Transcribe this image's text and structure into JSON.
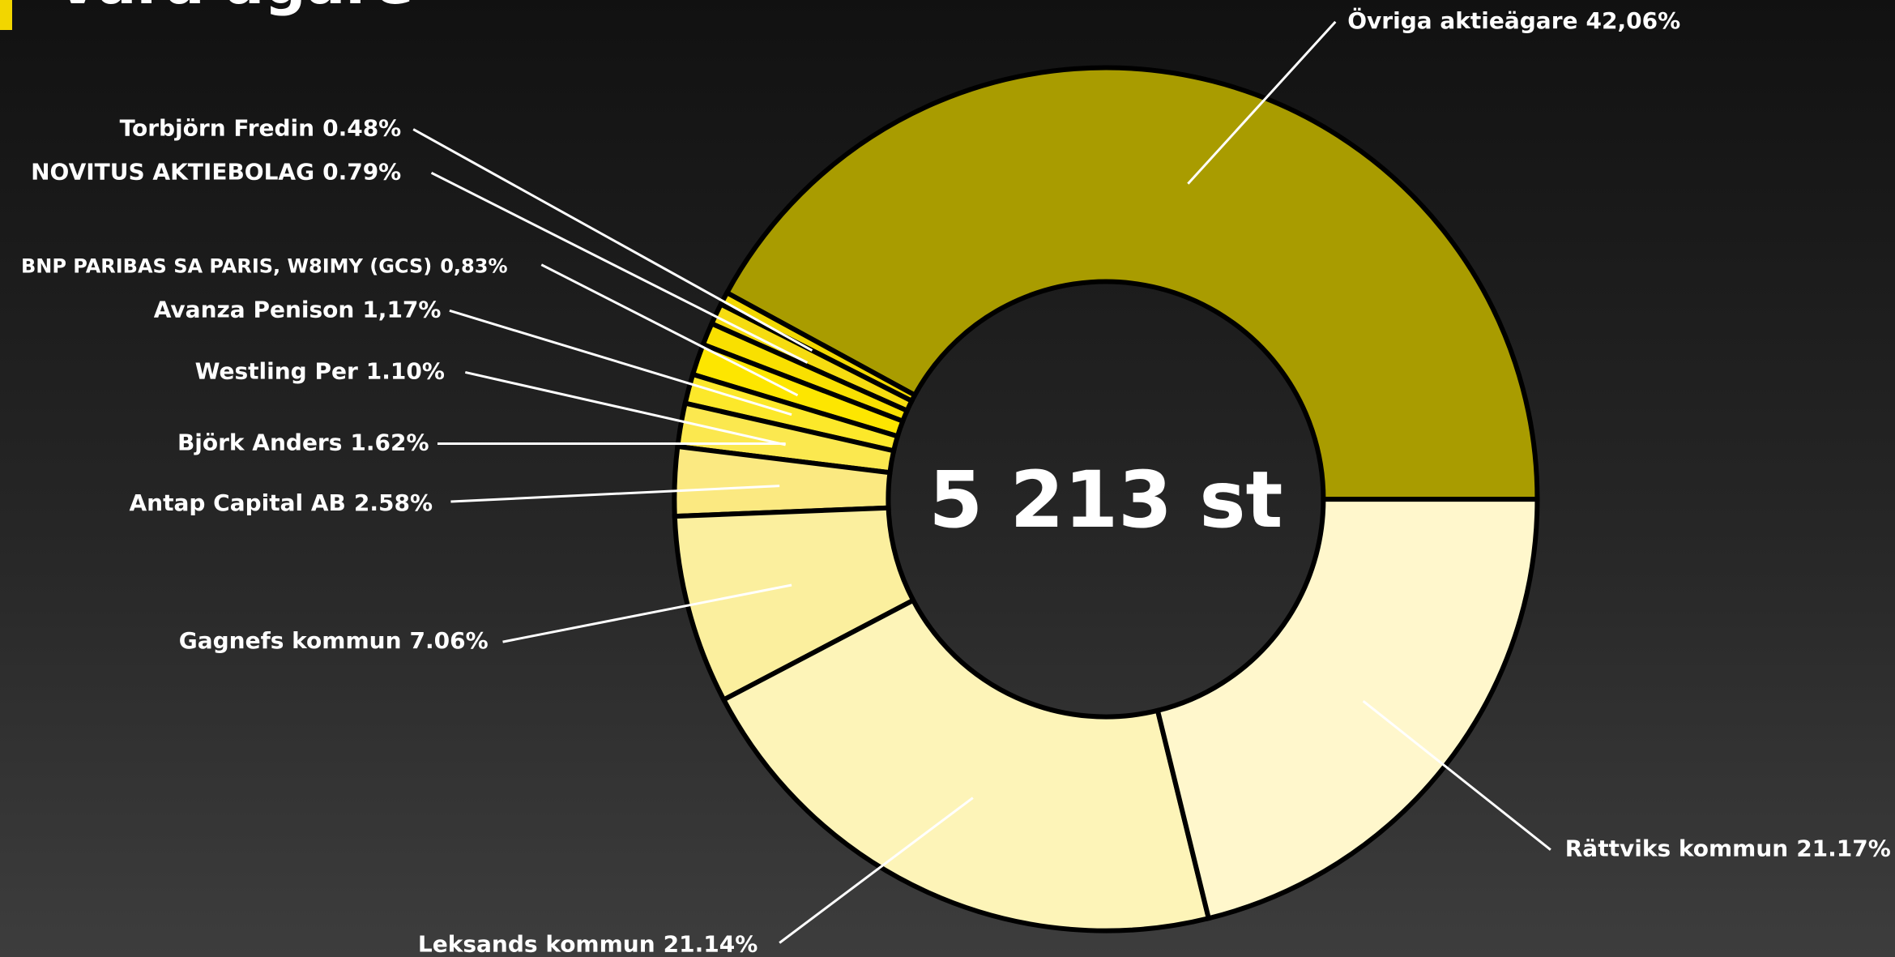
{
  "chart_data": {
    "type": "donut",
    "title": "Våra ägare",
    "center_label": "5 213 st",
    "categories": [
      "Övriga aktieägare",
      "Torbjörn Fredin",
      "NOVITUS AKTIEBOLAG",
      "BNP PARIBAS SA PARIS, W8IMY (GCS)",
      "Avanza Penison",
      "Westling Per",
      "Björk Anders",
      "Antap Capital AB",
      "Gagnefs kommun",
      "Leksands kommun",
      "Rättviks kommun"
    ],
    "values": [
      42.06,
      0.48,
      0.79,
      0.83,
      1.17,
      1.1,
      1.62,
      2.58,
      7.06,
      21.14,
      21.17
    ],
    "value_labels": [
      "42,06%",
      "0.48%",
      "0.79%",
      "0,83%",
      "1,17%",
      "1.10%",
      "1.62%",
      "2.58%",
      "7.06%",
      "21.14%",
      "21.17%"
    ],
    "colors": [
      "#a99c00",
      "#f3d800",
      "#f6dc10",
      "#f9e000",
      "#fde600",
      "#fce82a",
      "#fbe84f",
      "#fbe981",
      "#fbef9e",
      "#fdf4b8",
      "#fff7cc"
    ]
  }
}
